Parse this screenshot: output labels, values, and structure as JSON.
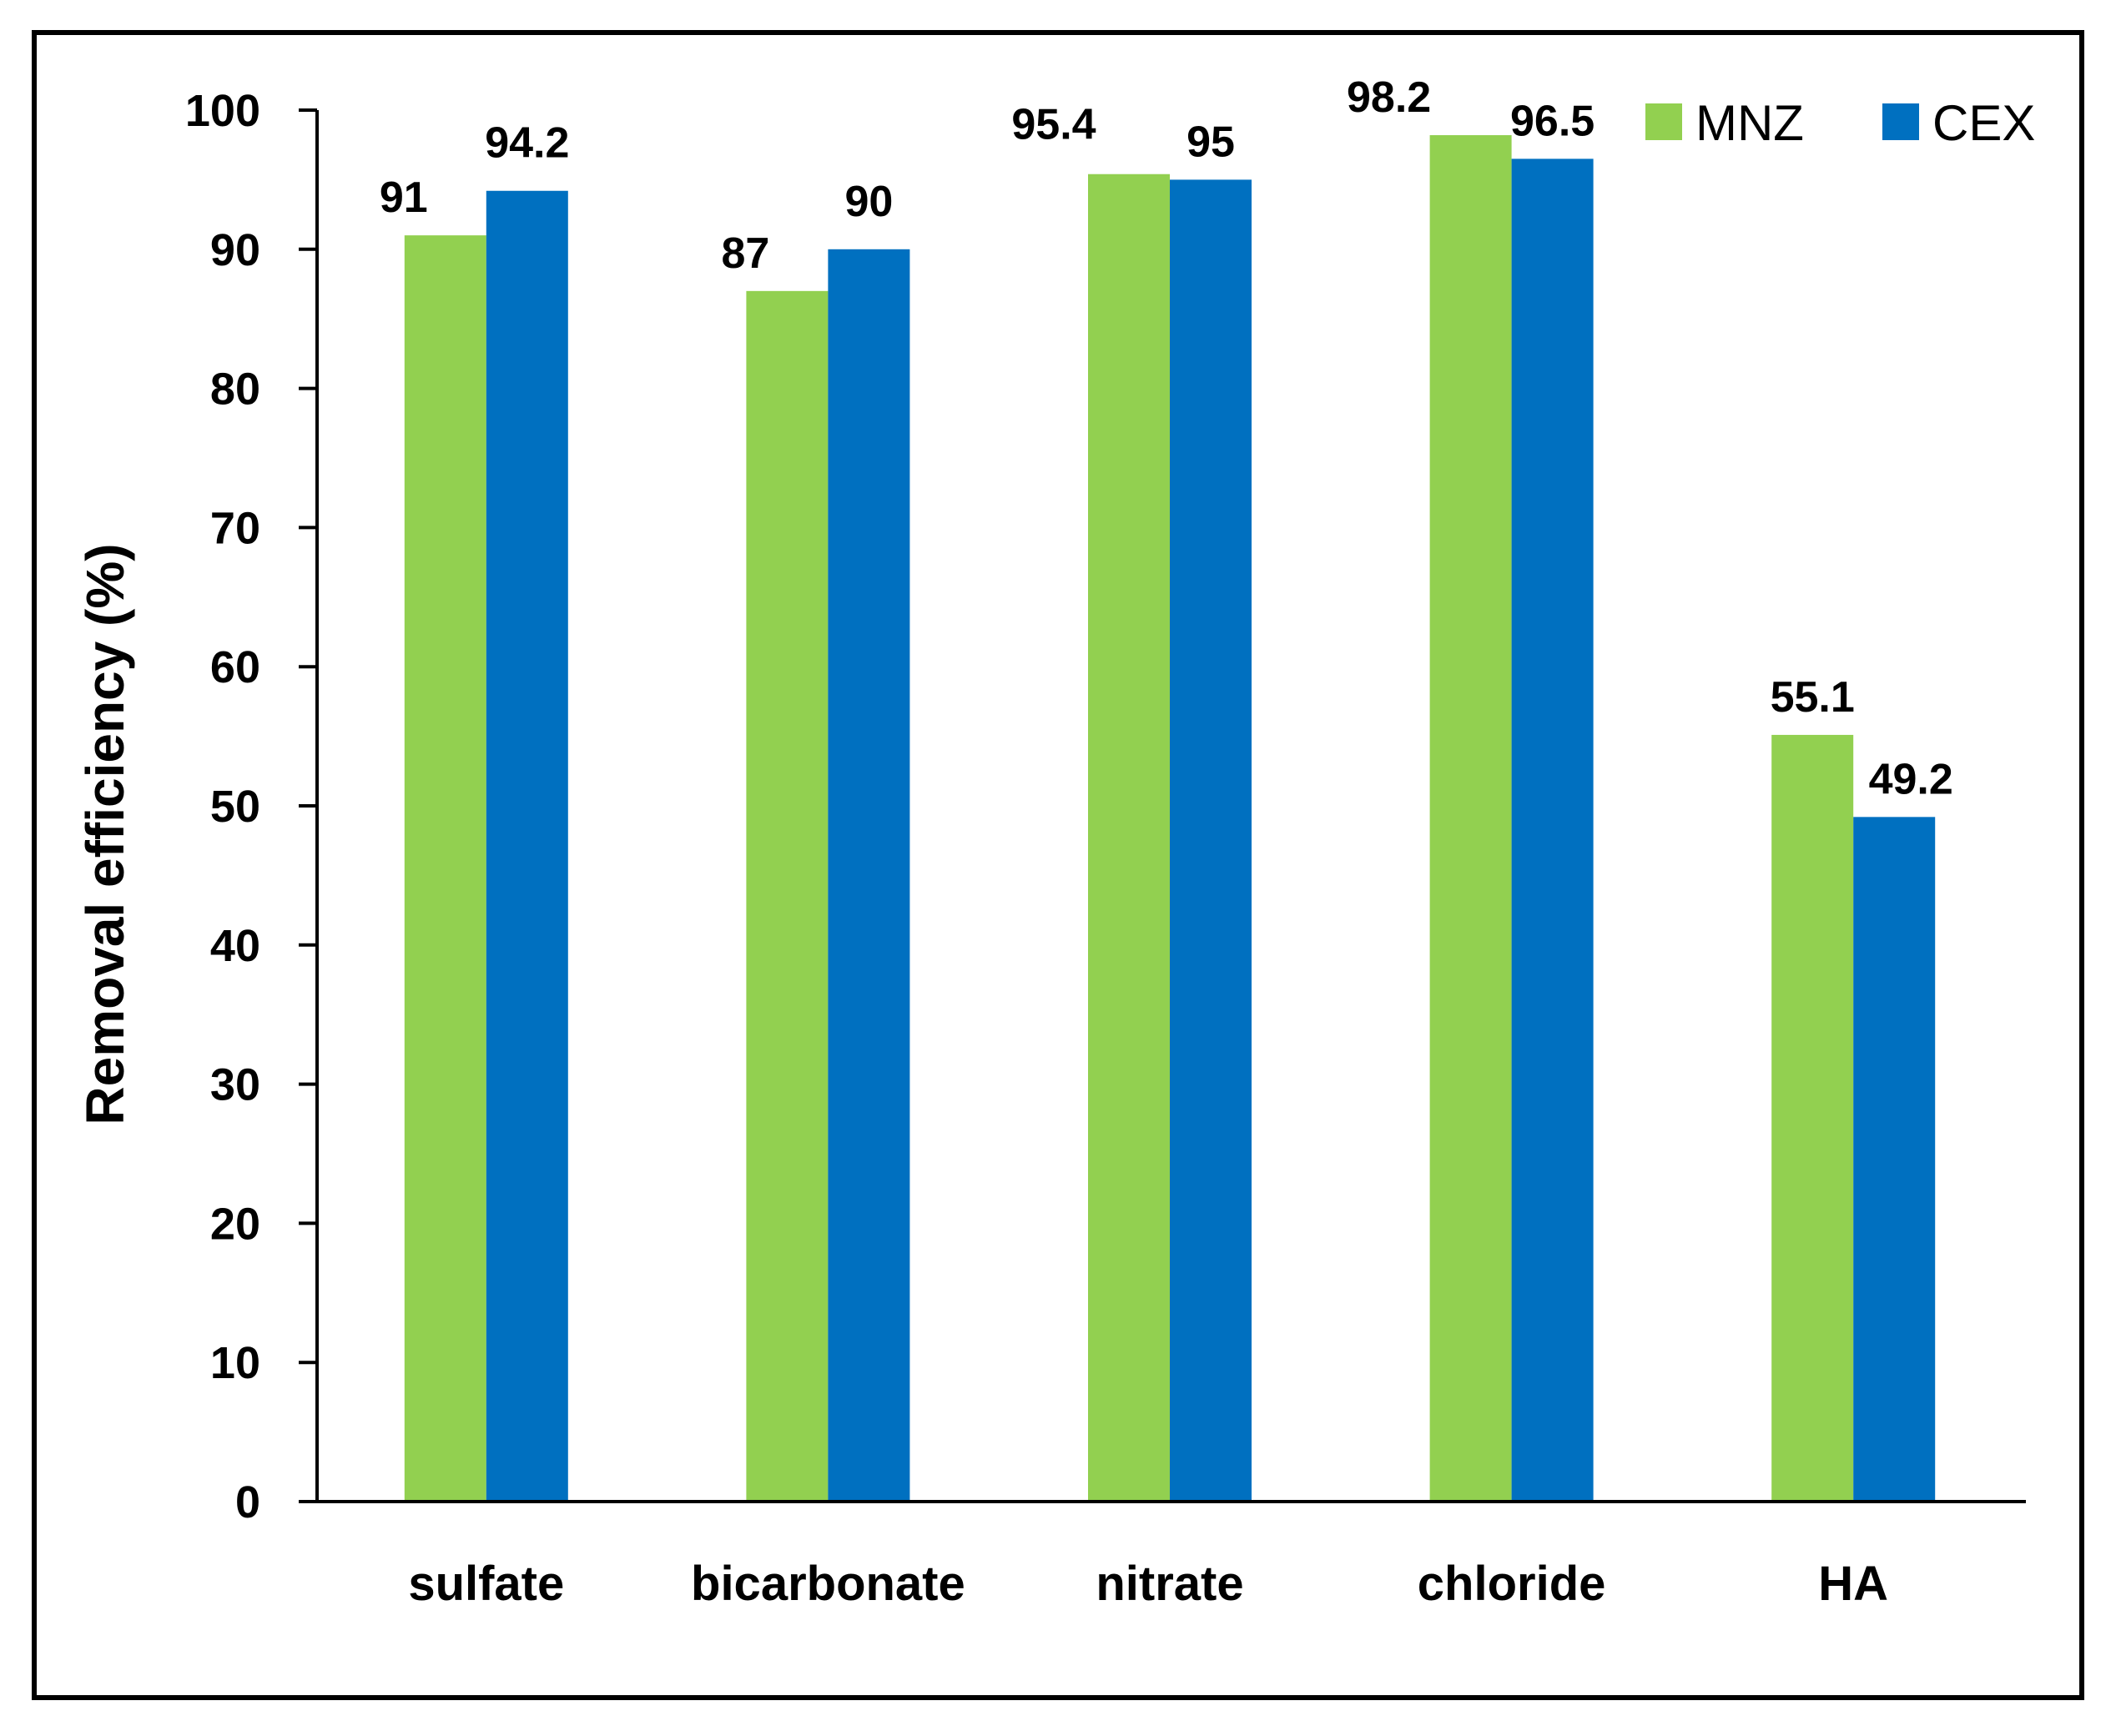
{
  "chart_data": {
    "type": "bar",
    "title": "",
    "xlabel": "",
    "ylabel": "Removal efficiency (%)",
    "ylim": [
      0,
      100
    ],
    "yticks": [
      0,
      10,
      20,
      30,
      40,
      50,
      60,
      70,
      80,
      90,
      100
    ],
    "categories": [
      "sulfate",
      "bicarbonate",
      "nitrate",
      "chloride",
      "HA"
    ],
    "series": [
      {
        "name": "MNZ",
        "color": "#92D050",
        "values": [
          91,
          87,
          95.4,
          98.2,
          55.1
        ],
        "labels": [
          "91",
          "87",
          "95.4",
          "98.2",
          "55.1"
        ]
      },
      {
        "name": "CEX",
        "color": "#0070C0",
        "values": [
          94.2,
          90,
          95,
          96.5,
          49.2
        ],
        "labels": [
          "94.2",
          "90",
          "95",
          "96.5",
          "49.2"
        ]
      }
    ],
    "legend_position": "top-right",
    "grid": false
  }
}
